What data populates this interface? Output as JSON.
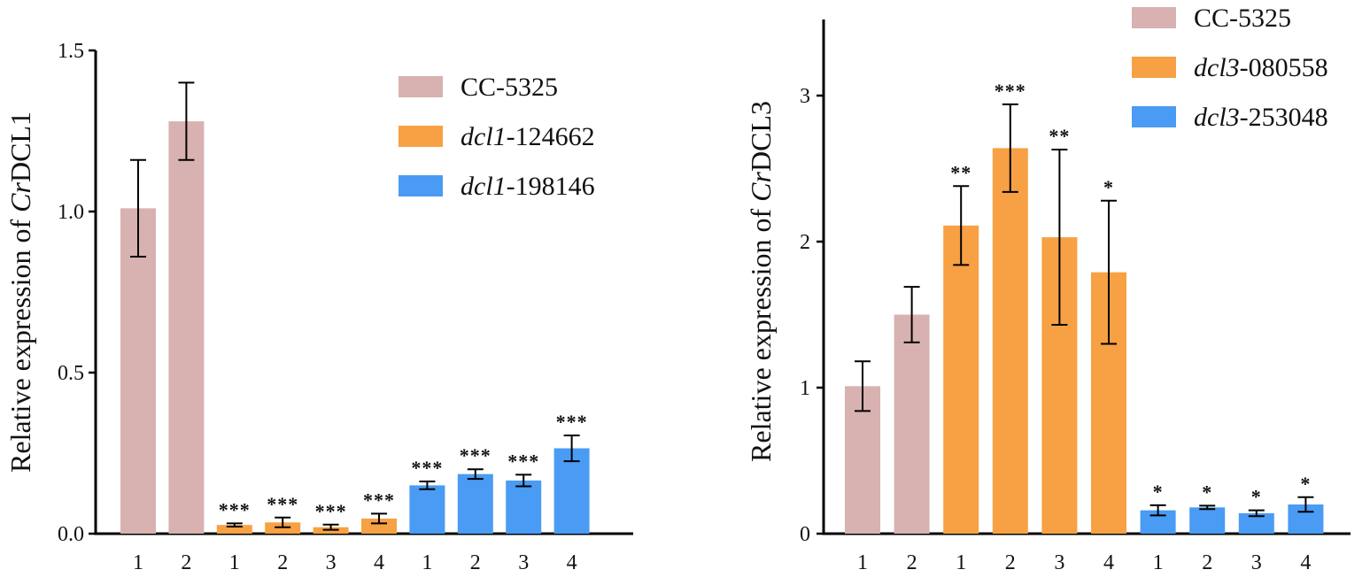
{
  "chart_data": [
    {
      "type": "bar",
      "ylabel": {
        "prefix": "Relative expression of ",
        "italic": "Cr",
        "suffix": "DCL1"
      },
      "ylim": [
        0,
        1.5
      ],
      "yticks": [
        "0.0",
        "0.5",
        "1.0",
        "1.5"
      ],
      "ytick_values": [
        0,
        0.5,
        1.0,
        1.5
      ],
      "legend_position": "top-right",
      "colors": {
        "CC-5325": "#d7b2b0",
        "dcl1-124662": "#f7a144",
        "dcl1-198146": "#4a9bf3"
      },
      "series": [
        {
          "name": "CC-5325",
          "legend_italic": "",
          "legend_plain": "CC-5325",
          "categories": [
            "1",
            "2"
          ],
          "values": [
            1.01,
            1.28
          ],
          "errors": [
            0.15,
            0.12
          ],
          "significance": [
            "",
            ""
          ]
        },
        {
          "name": "dcl1-124662",
          "legend_italic": "dcl1",
          "legend_plain": "-124662",
          "categories": [
            "1",
            "2",
            "3",
            "4"
          ],
          "values": [
            0.027,
            0.035,
            0.02,
            0.047
          ],
          "errors": [
            0.005,
            0.015,
            0.008,
            0.015
          ],
          "significance": [
            "***",
            "***",
            "***",
            "***"
          ]
        },
        {
          "name": "dcl1-198146",
          "legend_italic": "dcl1",
          "legend_plain": "-198146",
          "categories": [
            "1",
            "2",
            "3",
            "4"
          ],
          "values": [
            0.15,
            0.185,
            0.165,
            0.265
          ],
          "errors": [
            0.012,
            0.015,
            0.018,
            0.04
          ],
          "significance": [
            "***",
            "***",
            "***",
            "***"
          ]
        }
      ]
    },
    {
      "type": "bar",
      "ylabel": {
        "prefix": "Relative expression of ",
        "italic": "Cr",
        "suffix": "DCL3"
      },
      "ylim": [
        0,
        3.5
      ],
      "yticks": [
        "0",
        "1",
        "2",
        "3"
      ],
      "ytick_values": [
        0,
        1,
        2,
        3
      ],
      "legend_position": "top-right",
      "colors": {
        "CC-5325": "#d7b2b0",
        "dcl3-080558": "#f7a144",
        "dcl3-253048": "#4a9bf3"
      },
      "series": [
        {
          "name": "CC-5325",
          "legend_italic": "",
          "legend_plain": "CC-5325",
          "categories": [
            "1",
            "2"
          ],
          "values": [
            1.01,
            1.5
          ],
          "errors": [
            0.17,
            0.19
          ],
          "significance": [
            "",
            ""
          ]
        },
        {
          "name": "dcl3-080558",
          "legend_italic": "dcl3",
          "legend_plain": "-080558",
          "categories": [
            "1",
            "2",
            "3",
            "4"
          ],
          "values": [
            2.11,
            2.64,
            2.03,
            1.79
          ],
          "errors": [
            0.27,
            0.3,
            0.6,
            0.49
          ],
          "significance": [
            "**",
            "***",
            "**",
            "*"
          ]
        },
        {
          "name": "dcl3-253048",
          "legend_italic": "dcl3",
          "legend_plain": "-253048",
          "categories": [
            "1",
            "2",
            "3",
            "4"
          ],
          "values": [
            0.16,
            0.18,
            0.14,
            0.2
          ],
          "errors": [
            0.035,
            0.012,
            0.02,
            0.05
          ],
          "significance": [
            "*",
            "*",
            "*",
            "*"
          ]
        }
      ]
    }
  ]
}
